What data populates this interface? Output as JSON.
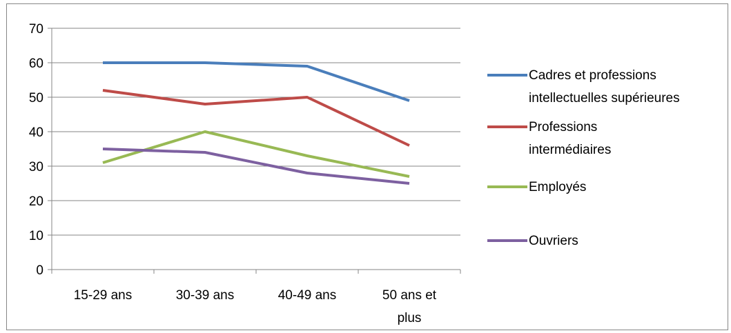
{
  "chart_data": {
    "type": "line",
    "categories": [
      [
        "15-29 ans"
      ],
      [
        "30-39 ans"
      ],
      [
        "40-49 ans"
      ],
      [
        "50 ans et",
        "plus"
      ]
    ],
    "ylim": [
      0,
      70
    ],
    "yticks": [
      0,
      10,
      20,
      30,
      40,
      50,
      60,
      70
    ],
    "grid": true,
    "legend_position": "right",
    "series": [
      {
        "name": [
          "Cadres et professions",
          "intellectuelles supérieures"
        ],
        "color": "#4A7EBB",
        "values": [
          60,
          60,
          59,
          49
        ]
      },
      {
        "name": [
          "Professions",
          "intermédiaires"
        ],
        "color": "#BE4B48",
        "values": [
          52,
          48,
          50,
          36
        ]
      },
      {
        "name": [
          "Employés"
        ],
        "color": "#98B954",
        "values": [
          31,
          40,
          33,
          27
        ]
      },
      {
        "name": [
          "Ouvriers"
        ],
        "color": "#7D60A0",
        "values": [
          35,
          34,
          28,
          25
        ]
      }
    ]
  }
}
